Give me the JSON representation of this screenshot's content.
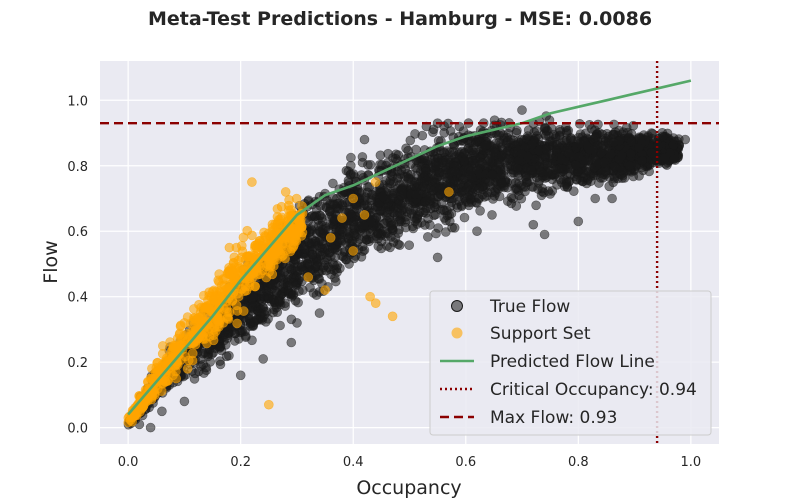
{
  "chart_data": {
    "type": "scatter",
    "title": "Meta-Test Predictions - Hamburg - MSE: 0.0086",
    "xlabel": "Occupancy",
    "ylabel": "Flow",
    "xlim": [
      -0.05,
      1.05
    ],
    "ylim": [
      -0.05,
      1.12
    ],
    "xticks": [
      "0.0",
      "0.2",
      "0.4",
      "0.6",
      "0.8",
      "1.0"
    ],
    "yticks": [
      "0.0",
      "0.2",
      "0.4",
      "0.6",
      "0.8",
      "1.0"
    ],
    "grid": true,
    "legend_position": "bottom-right",
    "series": [
      {
        "name": "True Flow",
        "kind": "scatter",
        "color": "#1a1a1a",
        "opacity": 0.55,
        "envelope": {
          "x": [
            0.0,
            0.05,
            0.1,
            0.2,
            0.3,
            0.4,
            0.5,
            0.6,
            0.7,
            0.8,
            0.9,
            0.98
          ],
          "y_lower": [
            0.0,
            0.06,
            0.1,
            0.2,
            0.3,
            0.42,
            0.52,
            0.6,
            0.66,
            0.7,
            0.74,
            0.8
          ],
          "y_upper": [
            0.02,
            0.2,
            0.32,
            0.52,
            0.72,
            0.86,
            0.92,
            0.97,
            0.98,
            0.96,
            0.94,
            0.9
          ]
        },
        "points": [
          {
            "x": 0.42,
            "y": 0.88
          },
          {
            "x": 0.53,
            "y": 0.92
          },
          {
            "x": 0.55,
            "y": 0.93
          },
          {
            "x": 0.7,
            "y": 0.97
          },
          {
            "x": 0.93,
            "y": 0.9
          },
          {
            "x": 0.95,
            "y": 0.89
          },
          {
            "x": 0.99,
            "y": 0.88
          },
          {
            "x": 0.97,
            "y": 0.82
          },
          {
            "x": 0.93,
            "y": 0.84
          },
          {
            "x": 0.8,
            "y": 0.63
          },
          {
            "x": 0.83,
            "y": 0.7
          },
          {
            "x": 0.86,
            "y": 0.7
          },
          {
            "x": 0.74,
            "y": 0.59
          },
          {
            "x": 0.72,
            "y": 0.62
          },
          {
            "x": 0.62,
            "y": 0.6
          },
          {
            "x": 0.55,
            "y": 0.52
          },
          {
            "x": 0.51,
            "y": 0.63
          },
          {
            "x": 0.3,
            "y": 0.32
          },
          {
            "x": 0.34,
            "y": 0.35
          },
          {
            "x": 0.29,
            "y": 0.26
          },
          {
            "x": 0.24,
            "y": 0.21
          },
          {
            "x": 0.2,
            "y": 0.16
          },
          {
            "x": 0.1,
            "y": 0.08
          },
          {
            "x": 0.06,
            "y": 0.05
          },
          {
            "x": 0.04,
            "y": 0.0
          },
          {
            "x": 0.02,
            "y": 0.01
          }
        ]
      },
      {
        "name": "Support Set",
        "kind": "scatter",
        "color": "#ffa500",
        "opacity": 0.6,
        "envelope": {
          "x": [
            0.0,
            0.05,
            0.1,
            0.15,
            0.2,
            0.25,
            0.3
          ],
          "y_lower": [
            0.0,
            0.07,
            0.14,
            0.22,
            0.32,
            0.42,
            0.52
          ],
          "y_upper": [
            0.04,
            0.22,
            0.36,
            0.5,
            0.62,
            0.68,
            0.72
          ]
        },
        "points": [
          {
            "x": 0.22,
            "y": 0.75
          },
          {
            "x": 0.28,
            "y": 0.72
          },
          {
            "x": 0.4,
            "y": 0.7
          },
          {
            "x": 0.42,
            "y": 0.65
          },
          {
            "x": 0.44,
            "y": 0.75
          },
          {
            "x": 0.57,
            "y": 0.72
          },
          {
            "x": 0.38,
            "y": 0.64
          },
          {
            "x": 0.36,
            "y": 0.58
          },
          {
            "x": 0.4,
            "y": 0.54
          },
          {
            "x": 0.43,
            "y": 0.4
          },
          {
            "x": 0.44,
            "y": 0.38
          },
          {
            "x": 0.47,
            "y": 0.34
          },
          {
            "x": 0.35,
            "y": 0.42
          },
          {
            "x": 0.32,
            "y": 0.46
          },
          {
            "x": 0.25,
            "y": 0.07
          },
          {
            "x": 0.18,
            "y": 0.55
          },
          {
            "x": 0.16,
            "y": 0.45
          }
        ]
      },
      {
        "name": "Predicted Flow Line",
        "kind": "line",
        "color": "#55a868",
        "x": [
          0.0,
          0.05,
          0.1,
          0.15,
          0.2,
          0.25,
          0.3,
          0.35,
          0.4,
          0.45,
          0.5,
          0.55,
          0.6,
          0.65,
          0.7,
          0.75,
          0.8,
          0.85,
          0.9,
          0.95,
          1.0
        ],
        "y": [
          0.04,
          0.14,
          0.24,
          0.34,
          0.45,
          0.55,
          0.65,
          0.71,
          0.74,
          0.78,
          0.82,
          0.86,
          0.89,
          0.91,
          0.93,
          0.96,
          0.98,
          1.0,
          1.02,
          1.04,
          1.06
        ]
      }
    ],
    "reference_lines": [
      {
        "name": "Critical Occupancy: 0.94",
        "orientation": "vertical",
        "value": 0.94,
        "color": "#8b0000",
        "style": "dotted"
      },
      {
        "name": "Max Flow: 0.93",
        "orientation": "horizontal",
        "value": 0.93,
        "color": "#8b0000",
        "style": "dashed"
      }
    ]
  }
}
